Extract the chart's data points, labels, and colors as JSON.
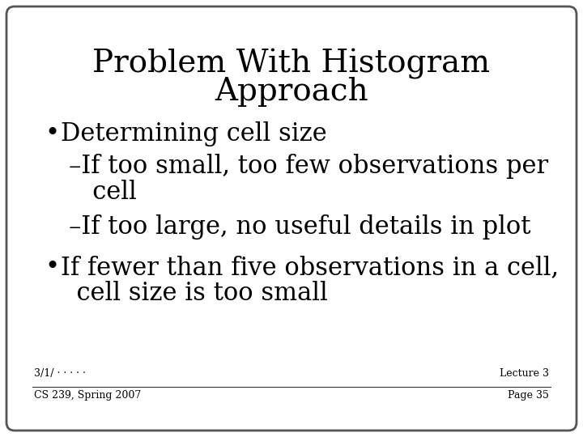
{
  "title_line1": "Problem With Histogram",
  "title_line2": "Approach",
  "bullet1": "Determining cell size",
  "sub1a_line1": "–If too small, too few observations per",
  "sub1a_line2": "   cell",
  "sub1b": "–If too large, no useful details in plot",
  "bullet2_line1": "If fewer than five observations in a cell,",
  "bullet2_line2": "  cell size is too small",
  "footer_left_top": "3/1/ · · · · ·",
  "footer_left_bottom": "CS 239, Spring 2007",
  "footer_right_top": "Lecture 3",
  "footer_right_bottom": "Page 35",
  "bg_color": "#ffffff",
  "text_color": "#000000",
  "border_color": "#555555",
  "title_fontsize": 28,
  "body_fontsize": 22,
  "footer_fontsize": 9
}
